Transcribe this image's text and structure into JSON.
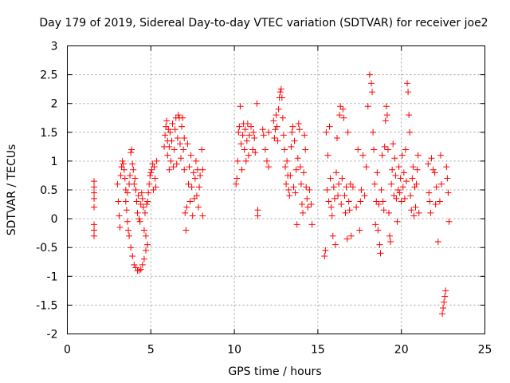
{
  "chart_data": {
    "type": "scatter",
    "title": "Day 179 of 2019, Sidereal Day-to-day VTEC variation (SDTVAR) for receiver joe2",
    "xlabel": "GPS time / hours",
    "ylabel": "SDTVAR / TECUs",
    "xlim": [
      0,
      25
    ],
    "ylim": [
      -2,
      3
    ],
    "xticks": [
      "0",
      "5",
      "10",
      "15",
      "20",
      "25"
    ],
    "yticks": [
      "3",
      "2.5",
      "2",
      "1.5",
      "1",
      "0.5",
      "0",
      "-0.5",
      "-1",
      "-1.5",
      "-2"
    ],
    "grid": true,
    "marker": "plus",
    "color": "#ff0000",
    "series": [
      {
        "name": "SDTVAR",
        "points": [
          [
            1.6,
            0.65
          ],
          [
            1.6,
            0.55
          ],
          [
            1.6,
            0.45
          ],
          [
            1.6,
            0.35
          ],
          [
            1.6,
            0.2
          ],
          [
            1.6,
            -0.1
          ],
          [
            1.6,
            -0.2
          ],
          [
            1.6,
            -0.3
          ],
          [
            3.0,
            0.6
          ],
          [
            3.05,
            0.3
          ],
          [
            3.1,
            0.05
          ],
          [
            3.15,
            -0.15
          ],
          [
            3.2,
            0.75
          ],
          [
            3.25,
            0.9
          ],
          [
            3.3,
            1.0
          ],
          [
            3.35,
            0.95
          ],
          [
            3.4,
            0.85
          ],
          [
            3.45,
            0.7
          ],
          [
            3.5,
            0.5
          ],
          [
            3.5,
            0.3
          ],
          [
            3.55,
            0.15
          ],
          [
            3.6,
            0.45
          ],
          [
            3.6,
            -0.05
          ],
          [
            3.65,
            -0.2
          ],
          [
            3.7,
            0.6
          ],
          [
            3.7,
            -0.3
          ],
          [
            3.75,
            0.75
          ],
          [
            3.8,
            1.15
          ],
          [
            3.8,
            -0.5
          ],
          [
            3.85,
            1.2
          ],
          [
            3.9,
            -0.65
          ],
          [
            3.9,
            0.95
          ],
          [
            3.95,
            0.85
          ],
          [
            4.0,
            -0.8
          ],
          [
            4.0,
            0.6
          ],
          [
            4.05,
            0.7
          ],
          [
            4.1,
            -0.85
          ],
          [
            4.1,
            0.5
          ],
          [
            4.15,
            0.3
          ],
          [
            4.2,
            -0.9
          ],
          [
            4.2,
            0.1
          ],
          [
            4.25,
            0.4
          ],
          [
            4.3,
            -0.9
          ],
          [
            4.3,
            0.0
          ],
          [
            4.35,
            -0.05
          ],
          [
            4.4,
            -0.88
          ],
          [
            4.4,
            0.25
          ],
          [
            4.45,
            0.45
          ],
          [
            4.5,
            -0.8
          ],
          [
            4.5,
            0.35
          ],
          [
            4.55,
            0.2
          ],
          [
            4.6,
            -0.7
          ],
          [
            4.6,
            -0.2
          ],
          [
            4.65,
            0.1
          ],
          [
            4.7,
            -0.55
          ],
          [
            4.7,
            -0.3
          ],
          [
            4.75,
            0.25
          ],
          [
            4.8,
            -0.45
          ],
          [
            4.8,
            0.3
          ],
          [
            4.85,
            0.45
          ],
          [
            4.9,
            0.6
          ],
          [
            4.95,
            0.75
          ],
          [
            5.0,
            0.8
          ],
          [
            5.05,
            0.85
          ],
          [
            5.1,
            0.95
          ],
          [
            5.15,
            0.5
          ],
          [
            5.2,
            0.9
          ],
          [
            5.25,
            0.7
          ],
          [
            5.3,
            0.55
          ],
          [
            5.35,
            1.0
          ],
          [
            5.8,
            1.25
          ],
          [
            5.85,
            1.45
          ],
          [
            5.9,
            1.6
          ],
          [
            5.95,
            1.7
          ],
          [
            6.0,
            1.1
          ],
          [
            6.0,
            1.35
          ],
          [
            6.05,
            1.55
          ],
          [
            6.1,
            0.85
          ],
          [
            6.1,
            1.25
          ],
          [
            6.15,
            1.5
          ],
          [
            6.2,
            1.0
          ],
          [
            6.25,
            1.35
          ],
          [
            6.3,
            1.65
          ],
          [
            6.35,
            0.9
          ],
          [
            6.4,
            1.2
          ],
          [
            6.45,
            1.55
          ],
          [
            6.5,
            1.75
          ],
          [
            6.55,
            0.95
          ],
          [
            6.6,
            1.4
          ],
          [
            6.65,
            1.8
          ],
          [
            6.7,
            1.75
          ],
          [
            6.75,
            1.3
          ],
          [
            6.8,
            1.05
          ],
          [
            6.85,
            1.6
          ],
          [
            6.9,
            1.75
          ],
          [
            6.95,
            1.2
          ],
          [
            7.0,
            0.85
          ],
          [
            7.0,
            1.4
          ],
          [
            7.05,
            0.1
          ],
          [
            7.1,
            -0.2
          ],
          [
            7.15,
            0.2
          ],
          [
            7.2,
            1.3
          ],
          [
            7.25,
            0.6
          ],
          [
            7.3,
            0.9
          ],
          [
            7.35,
            0.3
          ],
          [
            7.4,
            1.1
          ],
          [
            7.45,
            0.55
          ],
          [
            7.5,
            0.05
          ],
          [
            7.55,
            0.8
          ],
          [
            7.6,
            0.35
          ],
          [
            7.65,
            0.7
          ],
          [
            7.7,
            1.0
          ],
          [
            7.75,
            0.4
          ],
          [
            7.8,
            0.85
          ],
          [
            7.85,
            0.2
          ],
          [
            7.9,
            0.55
          ],
          [
            7.95,
            0.75
          ],
          [
            8.05,
            1.2
          ],
          [
            8.1,
            0.85
          ],
          [
            8.1,
            0.05
          ],
          [
            10.1,
            0.6
          ],
          [
            10.15,
            0.7
          ],
          [
            10.2,
            1.0
          ],
          [
            10.25,
            1.5
          ],
          [
            10.3,
            1.6
          ],
          [
            10.35,
            1.95
          ],
          [
            10.4,
            1.3
          ],
          [
            10.45,
            0.85
          ],
          [
            10.5,
            1.45
          ],
          [
            10.55,
            1.65
          ],
          [
            10.6,
            1.2
          ],
          [
            10.65,
            1.55
          ],
          [
            10.7,
            1.0
          ],
          [
            10.75,
            1.35
          ],
          [
            10.8,
            1.65
          ],
          [
            10.85,
            1.1
          ],
          [
            10.9,
            1.45
          ],
          [
            11.0,
            1.6
          ],
          [
            11.1,
            1.2
          ],
          [
            11.15,
            1.5
          ],
          [
            11.2,
            1.4
          ],
          [
            11.25,
            1.15
          ],
          [
            11.35,
            2.0
          ],
          [
            11.4,
            0.15
          ],
          [
            11.4,
            0.05
          ],
          [
            11.7,
            1.55
          ],
          [
            11.75,
            1.45
          ],
          [
            11.85,
            1.2
          ],
          [
            11.95,
            1.0
          ],
          [
            12.05,
            1.5
          ],
          [
            12.05,
            0.9
          ],
          [
            12.35,
            1.7
          ],
          [
            12.4,
            1.4
          ],
          [
            12.45,
            1.55
          ],
          [
            12.5,
            1.8
          ],
          [
            12.55,
            1.6
          ],
          [
            12.6,
            1.35
          ],
          [
            12.65,
            1.9
          ],
          [
            12.7,
            2.1
          ],
          [
            12.75,
            2.2
          ],
          [
            12.8,
            2.25
          ],
          [
            12.85,
            2.1
          ],
          [
            12.9,
            1.75
          ],
          [
            12.95,
            1.45
          ],
          [
            13.0,
            1.2
          ],
          [
            13.05,
            0.9
          ],
          [
            13.1,
            0.6
          ],
          [
            13.15,
            1.0
          ],
          [
            13.2,
            0.75
          ],
          [
            13.25,
            0.5
          ],
          [
            13.3,
            0.4
          ],
          [
            13.35,
            0.75
          ],
          [
            13.4,
            1.25
          ],
          [
            13.45,
            1.5
          ],
          [
            13.5,
            1.6
          ],
          [
            13.55,
            0.55
          ],
          [
            13.6,
            1.35
          ],
          [
            13.65,
            0.45
          ],
          [
            13.7,
            0.85
          ],
          [
            13.75,
            -0.1
          ],
          [
            13.8,
            1.05
          ],
          [
            13.85,
            1.65
          ],
          [
            13.9,
            1.55
          ],
          [
            13.95,
            0.9
          ],
          [
            14.0,
            0.6
          ],
          [
            14.05,
            0.25
          ],
          [
            14.1,
            0.1
          ],
          [
            14.15,
            0.8
          ],
          [
            14.2,
            1.45
          ],
          [
            14.25,
            1.2
          ],
          [
            14.3,
            0.55
          ],
          [
            14.35,
            0.35
          ],
          [
            14.4,
            0.2
          ],
          [
            14.5,
            0.5
          ],
          [
            14.6,
            0.25
          ],
          [
            14.65,
            -0.1
          ],
          [
            15.4,
            -0.65
          ],
          [
            15.45,
            -0.55
          ],
          [
            15.5,
            1.5
          ],
          [
            15.55,
            0.5
          ],
          [
            15.6,
            1.1
          ],
          [
            15.65,
            0.3
          ],
          [
            15.7,
            1.6
          ],
          [
            15.75,
            0.7
          ],
          [
            15.8,
            0.2
          ],
          [
            15.85,
            0.05
          ],
          [
            15.9,
            -0.3
          ],
          [
            15.95,
            0.55
          ],
          [
            16.0,
            0.35
          ],
          [
            16.05,
            -0.45
          ],
          [
            16.1,
            0.8
          ],
          [
            16.15,
            1.4
          ],
          [
            16.2,
            0.4
          ],
          [
            16.25,
            0.6
          ],
          [
            16.3,
            1.8
          ],
          [
            16.35,
            1.95
          ],
          [
            16.4,
            0.25
          ],
          [
            16.45,
            0.7
          ],
          [
            16.5,
            1.9
          ],
          [
            16.55,
            1.75
          ],
          [
            16.6,
            0.4
          ],
          [
            16.65,
            0.1
          ],
          [
            16.7,
            0.55
          ],
          [
            16.75,
            -0.35
          ],
          [
            16.8,
            1.5
          ],
          [
            16.85,
            0.3
          ],
          [
            16.9,
            0.15
          ],
          [
            16.95,
            0.6
          ],
          [
            17.0,
            -0.3
          ],
          [
            17.1,
            0.55
          ],
          [
            17.3,
            0.2
          ],
          [
            17.4,
            1.2
          ],
          [
            17.5,
            -0.2
          ],
          [
            17.55,
            0.3
          ],
          [
            17.6,
            0.5
          ],
          [
            17.7,
            1.1
          ],
          [
            17.8,
            0.4
          ],
          [
            17.9,
            0.9
          ],
          [
            18.0,
            1.95
          ],
          [
            18.1,
            2.5
          ],
          [
            18.2,
            2.35
          ],
          [
            18.25,
            2.2
          ],
          [
            18.3,
            1.5
          ],
          [
            18.35,
            1.2
          ],
          [
            18.4,
            0.6
          ],
          [
            18.45,
            -0.1
          ],
          [
            18.5,
            0.3
          ],
          [
            18.55,
            0.8
          ],
          [
            18.6,
            -0.2
          ],
          [
            18.65,
            0.25
          ],
          [
            18.7,
            -0.45
          ],
          [
            18.75,
            -0.6
          ],
          [
            18.8,
            0.5
          ],
          [
            18.85,
            1.1
          ],
          [
            18.9,
            0.3
          ],
          [
            18.95,
            0.15
          ],
          [
            19.0,
            1.25
          ],
          [
            19.05,
            1.7
          ],
          [
            19.1,
            1.95
          ],
          [
            19.15,
            1.8
          ],
          [
            19.2,
            1.2
          ],
          [
            19.25,
            0.1
          ],
          [
            19.3,
            -0.3
          ],
          [
            19.35,
            -0.4
          ],
          [
            19.4,
            0.6
          ],
          [
            19.45,
            0.85
          ],
          [
            19.5,
            1.3
          ],
          [
            19.55,
            0.4
          ],
          [
            19.6,
            1.05
          ],
          [
            19.65,
            0.75
          ],
          [
            19.7,
            0.35
          ],
          [
            19.75,
            -0.05
          ],
          [
            19.8,
            0.5
          ],
          [
            19.85,
            0.9
          ],
          [
            19.9,
            0.45
          ],
          [
            19.95,
            0.7
          ],
          [
            20.0,
            0.3
          ],
          [
            20.05,
            1.1
          ],
          [
            20.1,
            0.55
          ],
          [
            20.15,
            0.8
          ],
          [
            20.2,
            0.35
          ],
          [
            20.25,
            1.2
          ],
          [
            20.3,
            0.65
          ],
          [
            20.35,
            2.35
          ],
          [
            20.4,
            2.2
          ],
          [
            20.45,
            1.8
          ],
          [
            20.5,
            1.5
          ],
          [
            20.55,
            0.4
          ],
          [
            20.6,
            0.15
          ],
          [
            20.65,
            0.7
          ],
          [
            20.7,
            0.9
          ],
          [
            20.75,
            0.05
          ],
          [
            20.8,
            0.55
          ],
          [
            20.85,
            0.2
          ],
          [
            20.9,
            0.6
          ],
          [
            20.95,
            0.85
          ],
          [
            21.0,
            1.1
          ],
          [
            21.05,
            0.1
          ],
          [
            21.6,
            0.95
          ],
          [
            21.65,
            0.45
          ],
          [
            21.7,
            0.3
          ],
          [
            21.75,
            0.1
          ],
          [
            21.8,
            1.05
          ],
          [
            21.9,
            0.85
          ],
          [
            22.0,
            0.8
          ],
          [
            22.05,
            0.25
          ],
          [
            22.1,
            0.55
          ],
          [
            22.2,
            -0.4
          ],
          [
            22.3,
            0.3
          ],
          [
            22.35,
            1.1
          ],
          [
            22.4,
            0.6
          ],
          [
            22.45,
            -1.65
          ],
          [
            22.5,
            -1.55
          ],
          [
            22.55,
            -1.45
          ],
          [
            22.6,
            -1.35
          ],
          [
            22.65,
            -1.25
          ],
          [
            22.7,
            0.9
          ],
          [
            22.75,
            0.7
          ],
          [
            22.8,
            0.45
          ],
          [
            22.85,
            -0.05
          ]
        ]
      }
    ]
  }
}
